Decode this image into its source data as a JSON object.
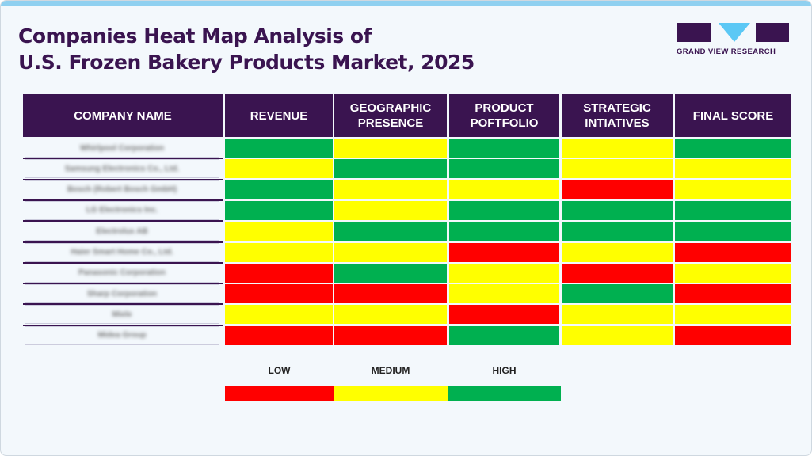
{
  "title_line1": "Companies Heat Map Analysis of",
  "title_line2": "U.S. Frozen Bakery Products Market, 2025",
  "logo_text": "GRAND VIEW RESEARCH",
  "colors": {
    "LOW": "#ff0000",
    "MEDIUM": "#ffff00",
    "HIGH": "#00b050",
    "header": "#3a1450"
  },
  "chart_data": {
    "type": "heatmap",
    "columns": [
      "COMPANY NAME",
      "REVENUE",
      "GEOGRAPHIC PRESENCE",
      "PRODUCT POFTFOLIO",
      "STRATEGIC INTIATIVES",
      "FINAL SCORE"
    ],
    "rows": [
      {
        "company": "Whirlpool Corporation",
        "values": [
          "HIGH",
          "MEDIUM",
          "HIGH",
          "MEDIUM",
          "HIGH"
        ]
      },
      {
        "company": "Samsung Electronics Co., Ltd.",
        "values": [
          "MEDIUM",
          "HIGH",
          "HIGH",
          "MEDIUM",
          "MEDIUM"
        ]
      },
      {
        "company": "Bosch (Robert Bosch GmbH)",
        "values": [
          "HIGH",
          "MEDIUM",
          "MEDIUM",
          "LOW",
          "MEDIUM"
        ]
      },
      {
        "company": "LG Electronics Inc.",
        "values": [
          "HIGH",
          "MEDIUM",
          "HIGH",
          "HIGH",
          "HIGH"
        ]
      },
      {
        "company": "Electrolux AB",
        "values": [
          "MEDIUM",
          "HIGH",
          "HIGH",
          "HIGH",
          "HIGH"
        ]
      },
      {
        "company": "Haier Smart Home Co., Ltd.",
        "values": [
          "MEDIUM",
          "MEDIUM",
          "LOW",
          "MEDIUM",
          "LOW"
        ]
      },
      {
        "company": "Panasonic Corporation",
        "values": [
          "LOW",
          "HIGH",
          "MEDIUM",
          "LOW",
          "MEDIUM"
        ]
      },
      {
        "company": "Sharp Corporation",
        "values": [
          "LOW",
          "LOW",
          "MEDIUM",
          "HIGH",
          "LOW"
        ]
      },
      {
        "company": "Miele",
        "values": [
          "MEDIUM",
          "MEDIUM",
          "LOW",
          "MEDIUM",
          "MEDIUM"
        ]
      },
      {
        "company": "Midea Group",
        "values": [
          "LOW",
          "LOW",
          "HIGH",
          "MEDIUM",
          "LOW"
        ]
      }
    ],
    "legend": [
      "LOW",
      "MEDIUM",
      "HIGH"
    ]
  }
}
